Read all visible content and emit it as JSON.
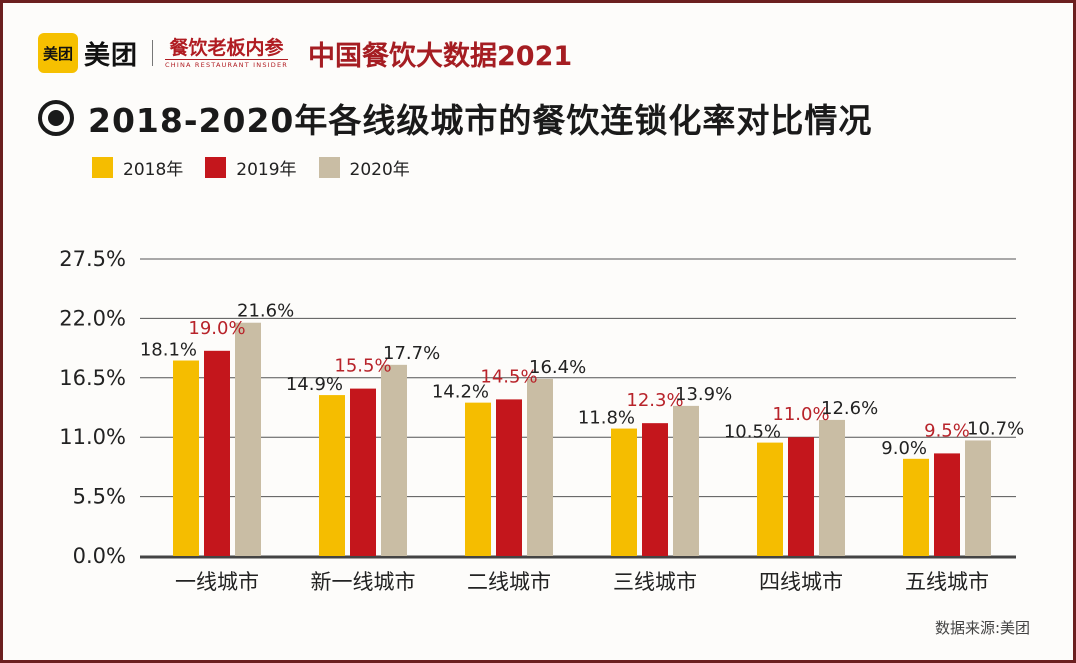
{
  "header": {
    "logo_text": "美团",
    "brand_name": "美团",
    "publication_name": "餐饮老板内参",
    "publication_sub": "CHINA RESTAURANT INSIDER",
    "report_title": "中国餐饮大数据2021"
  },
  "chart_title": "2018-2020年各线级城市的餐饮连锁化率对比情况",
  "colors": {
    "s2018": "#f5bd00",
    "s2019": "#c4161c",
    "s2020": "#c9bda4",
    "highlight_label": "#b8232a",
    "label": "#222222"
  },
  "source": "数据来源:美团",
  "chart_data": {
    "type": "bar",
    "title": "2018-2020年各线级城市的餐饮连锁化率对比情况",
    "categories": [
      "一线城市",
      "新一线城市",
      "二线城市",
      "三线城市",
      "四线城市",
      "五线城市"
    ],
    "series": [
      {
        "name": "2018年",
        "values": [
          18.1,
          14.9,
          14.2,
          11.8,
          10.5,
          9.0
        ],
        "labels": [
          "18.1%",
          "14.9%",
          "14.2%",
          "11.8%",
          "10.5%",
          "9.0%"
        ]
      },
      {
        "name": "2019年",
        "values": [
          19.0,
          15.5,
          14.5,
          12.3,
          11.0,
          9.5
        ],
        "labels": [
          "19.0%",
          "15.5%",
          "14.5%",
          "12.3%",
          "11.0%",
          "9.5%"
        ]
      },
      {
        "name": "2020年",
        "values": [
          21.6,
          17.7,
          16.4,
          13.9,
          12.6,
          10.7
        ],
        "labels": [
          "21.6%",
          "17.7%",
          "16.4%",
          "13.9%",
          "12.6%",
          "10.7%"
        ]
      }
    ],
    "yticks": [
      0,
      5.5,
      11,
      16.5,
      22,
      27.5
    ],
    "ytick_labels": [
      "0.0%",
      "5.5%",
      "11.0%",
      "16.5%",
      "22.0%",
      "27.5%"
    ],
    "ylim": [
      0,
      27.5
    ],
    "xlabel": "",
    "ylabel": "",
    "grid": true,
    "legend_position": "top-left"
  }
}
